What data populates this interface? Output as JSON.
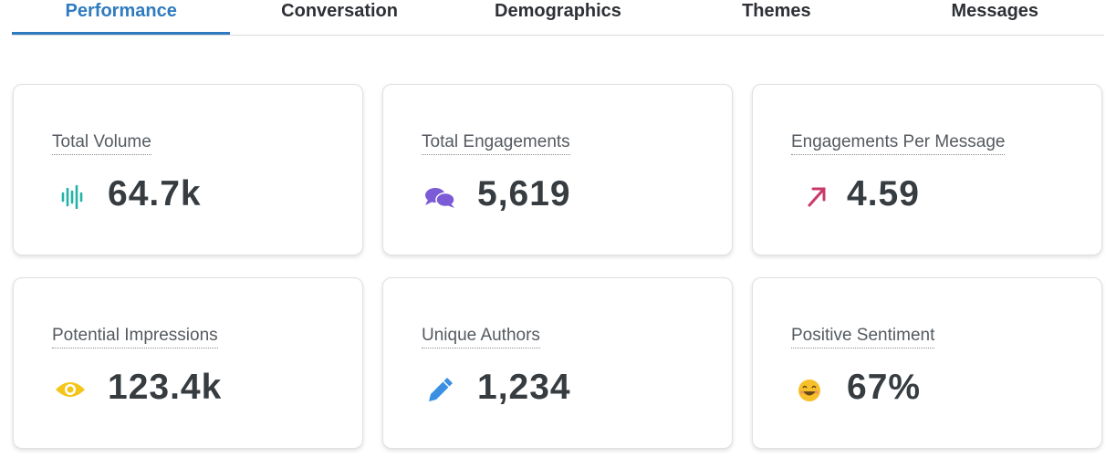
{
  "tabs": [
    "Performance",
    "Conversation",
    "Demographics",
    "Themes",
    "Messages"
  ],
  "active_tab": 0,
  "cards": [
    {
      "label": "Total Volume",
      "value": "64.7k"
    },
    {
      "label": "Total Engagements",
      "value": "5,619"
    },
    {
      "label": "Engagements Per Message",
      "value": "4.59"
    },
    {
      "label": "Potential Impressions",
      "value": "123.4k"
    },
    {
      "label": "Unique Authors",
      "value": "1,234"
    },
    {
      "label": "Positive Sentiment",
      "value": "67%"
    }
  ]
}
